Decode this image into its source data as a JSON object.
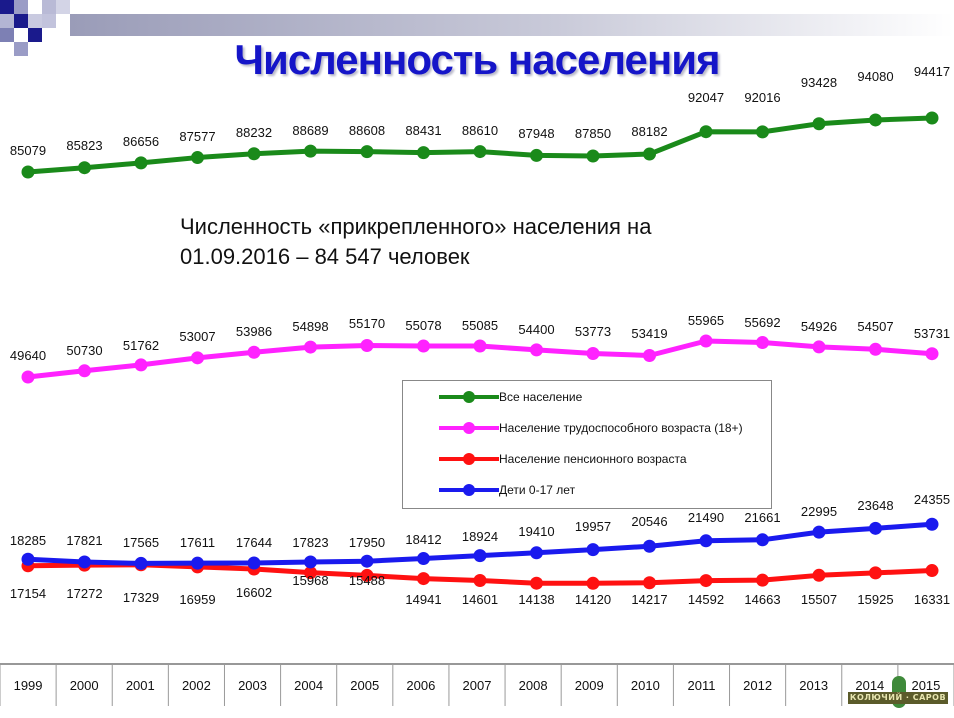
{
  "title": "Численность населения",
  "subtitle_line1": "Численность «прикрепленного» населения на",
  "subtitle_line2": "01.09.2016 – 84 547 человек",
  "logo_text": "КОЛЮЧИЙ · САРОВ",
  "chart_data": {
    "type": "line",
    "categories": [
      "1999",
      "2000",
      "2001",
      "2002",
      "2003",
      "2004",
      "2005",
      "2006",
      "2007",
      "2008",
      "2009",
      "2010",
      "2011",
      "2012",
      "2013",
      "2014",
      "2015"
    ],
    "series": [
      {
        "name": "Все население",
        "color": "#1a8a1a",
        "label_pos": "above",
        "values": [
          85079,
          85823,
          86656,
          87577,
          88232,
          88689,
          88608,
          88431,
          88610,
          87948,
          87850,
          88182,
          92047,
          92016,
          93428,
          94080,
          94417
        ]
      },
      {
        "name": "Население трудоспособного возраста (18+)",
        "color": "#ff22ff",
        "label_pos": "above",
        "values": [
          49640,
          50730,
          51762,
          53007,
          53986,
          54898,
          55170,
          55078,
          55085,
          54400,
          53773,
          53419,
          55965,
          55692,
          54926,
          54507,
          53731
        ]
      },
      {
        "name": "Население пенсионного возраста",
        "color": "#ff1111",
        "label_pos": "below",
        "values": [
          17154,
          17272,
          17329,
          16959,
          16602,
          15968,
          15488,
          14941,
          14601,
          14138,
          14120,
          14217,
          14592,
          14663,
          15507,
          15925,
          16331
        ]
      },
      {
        "name": "Дети 0-17 лет",
        "color": "#1a1aee",
        "label_pos": "above",
        "values": [
          18285,
          17821,
          17565,
          17611,
          17644,
          17823,
          17950,
          18412,
          18924,
          19410,
          19957,
          20546,
          21490,
          21661,
          22995,
          23648,
          24355
        ]
      }
    ],
    "legend_position": "center-right"
  }
}
